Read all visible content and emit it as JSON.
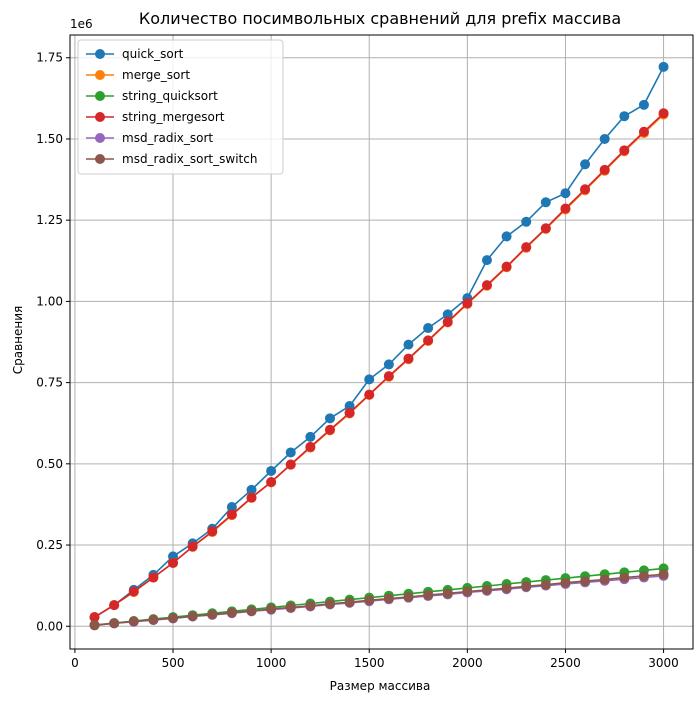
{
  "chart_data": {
    "type": "line",
    "title": "Количество посимвольных сравнений для prefix массива",
    "xlabel": "Размер массива",
    "ylabel": "Сравнения",
    "y_offset_label": "1e6",
    "xlim": [
      -25,
      3150
    ],
    "ylim": [
      -0.07,
      1.82
    ],
    "x_ticks": [
      0,
      500,
      1000,
      1500,
      2000,
      2500,
      3000
    ],
    "x_tick_labels": [
      "0",
      "500",
      "1000",
      "1500",
      "2000",
      "2500",
      "3000"
    ],
    "y_ticks": [
      0,
      0.25,
      0.5,
      0.75,
      1.0,
      1.25,
      1.5,
      1.75
    ],
    "y_tick_labels": [
      "0.00",
      "0.25",
      "0.50",
      "0.75",
      "1.00",
      "1.25",
      "1.50",
      "1.75"
    ],
    "grid": true,
    "legend_position": "top-left",
    "x": [
      100,
      200,
      300,
      400,
      500,
      600,
      700,
      800,
      900,
      1000,
      1100,
      1200,
      1300,
      1400,
      1500,
      1600,
      1700,
      1800,
      1900,
      2000,
      2100,
      2200,
      2300,
      2400,
      2500,
      2600,
      2700,
      2800,
      2900,
      3000
    ],
    "series": [
      {
        "name": "quick_sort",
        "color": "#1f77b4",
        "values": [
          0.028,
          0.065,
          0.112,
          0.158,
          0.215,
          0.255,
          0.3,
          0.367,
          0.42,
          0.478,
          0.535,
          0.583,
          0.64,
          0.678,
          0.76,
          0.806,
          0.867,
          0.918,
          0.96,
          1.01,
          1.127,
          1.2,
          1.245,
          1.305,
          1.333,
          1.422,
          1.5,
          1.57,
          1.605,
          1.722
        ]
      },
      {
        "name": "merge_sort",
        "color": "#ff7f0e",
        "values": [
          0.028,
          0.065,
          0.105,
          0.15,
          0.195,
          0.245,
          0.29,
          0.342,
          0.395,
          0.443,
          0.497,
          0.55,
          0.603,
          0.655,
          0.712,
          0.768,
          0.822,
          0.878,
          0.935,
          0.992,
          1.048,
          1.105,
          1.165,
          1.223,
          1.283,
          1.342,
          1.402,
          1.462,
          1.518,
          1.575
        ]
      },
      {
        "name": "string_quicksort",
        "color": "#2ca02c",
        "values": [
          0.004,
          0.01,
          0.016,
          0.022,
          0.028,
          0.034,
          0.04,
          0.046,
          0.052,
          0.058,
          0.064,
          0.07,
          0.076,
          0.082,
          0.088,
          0.094,
          0.1,
          0.106,
          0.112,
          0.118,
          0.124,
          0.13,
          0.136,
          0.142,
          0.148,
          0.154,
          0.16,
          0.166,
          0.172,
          0.178
        ]
      },
      {
        "name": "string_mergesort",
        "color": "#d62728",
        "values": [
          0.028,
          0.065,
          0.107,
          0.15,
          0.195,
          0.245,
          0.292,
          0.344,
          0.396,
          0.444,
          0.498,
          0.552,
          0.605,
          0.657,
          0.713,
          0.77,
          0.824,
          0.88,
          0.937,
          0.994,
          1.05,
          1.107,
          1.167,
          1.225,
          1.286,
          1.345,
          1.405,
          1.465,
          1.522,
          1.579
        ]
      },
      {
        "name": "msd_radix_sort",
        "color": "#9467bd",
        "values": [
          0.003,
          0.009,
          0.014,
          0.019,
          0.024,
          0.03,
          0.035,
          0.04,
          0.046,
          0.051,
          0.056,
          0.061,
          0.067,
          0.072,
          0.077,
          0.083,
          0.088,
          0.093,
          0.098,
          0.104,
          0.109,
          0.114,
          0.12,
          0.125,
          0.13,
          0.135,
          0.14,
          0.145,
          0.15,
          0.155
        ]
      },
      {
        "name": "msd_radix_sort_switch",
        "color": "#8c564b",
        "values": [
          0.003,
          0.009,
          0.015,
          0.02,
          0.025,
          0.031,
          0.036,
          0.042,
          0.047,
          0.053,
          0.058,
          0.063,
          0.069,
          0.074,
          0.08,
          0.085,
          0.09,
          0.096,
          0.101,
          0.107,
          0.112,
          0.117,
          0.123,
          0.128,
          0.134,
          0.139,
          0.144,
          0.15,
          0.155,
          0.16
        ]
      }
    ]
  }
}
